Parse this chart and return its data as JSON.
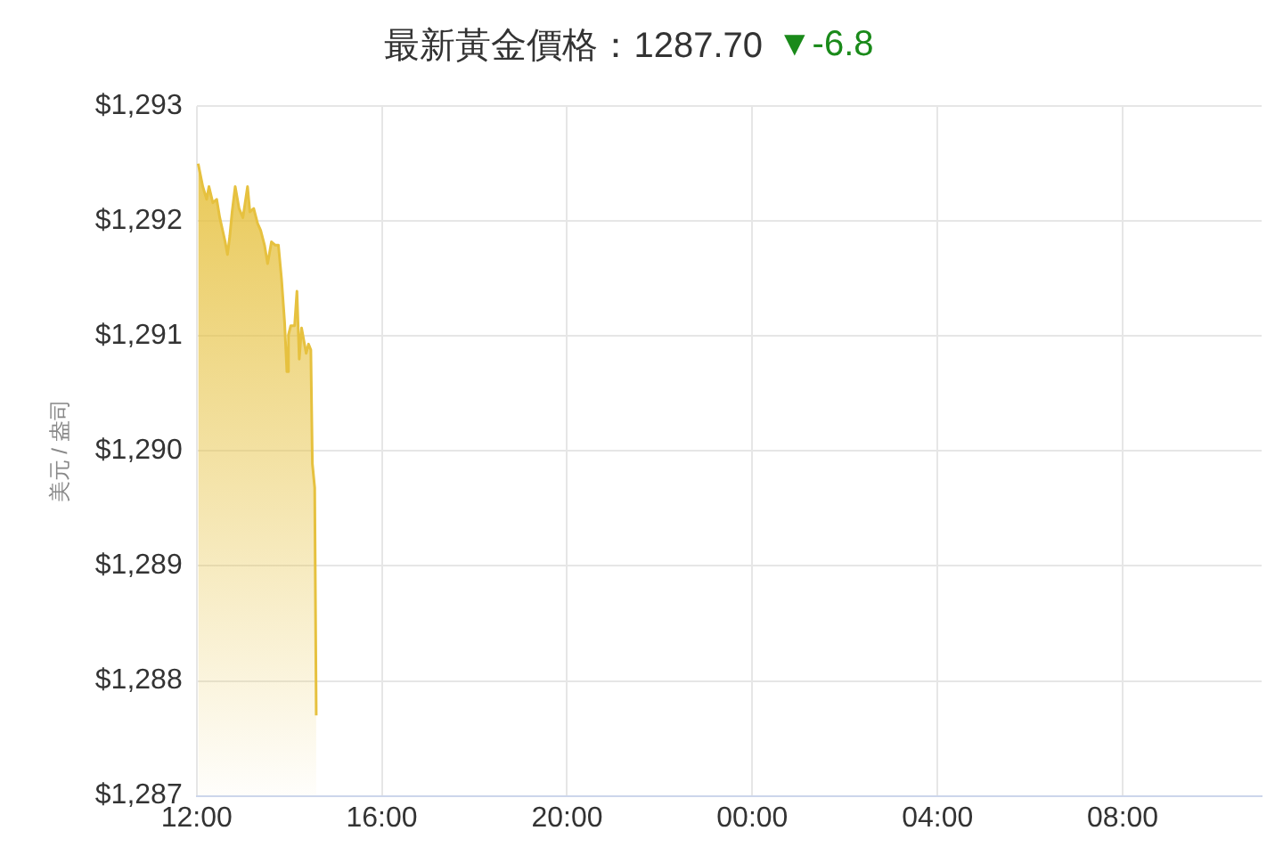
{
  "chart_data": {
    "type": "area",
    "title": "最新黃金價格：1287.70",
    "annotations": [
      "▼-6.8"
    ],
    "ylabel": "美元 / 盎司",
    "x": [
      "--03-01T12:02",
      "--03-01T12:08",
      "--03-01T12:13",
      "--03-01T12:16",
      "--03-01T12:21",
      "--03-01T12:26",
      "--03-01T12:30",
      "--03-01T12:37",
      "--03-01T12:40",
      "--03-01T12:43",
      "--03-01T12:46",
      "--03-01T12:50",
      "--03-01T12:55",
      "--03-01T13:00",
      "--03-01T13:06",
      "--03-01T13:09",
      "--03-01T13:14",
      "--03-01T13:19",
      "--03-01T13:23",
      "--03-01T13:28",
      "--03-01T13:32",
      "--03-01T13:37",
      "--03-01T13:42",
      "--03-01T13:46",
      "--03-01T13:50",
      "--03-01T13:54",
      "--03-01T13:57",
      "--03-01T13:59",
      "--03-01T14:02",
      "--03-01T14:07",
      "--03-01T14:10",
      "--03-01T14:13",
      "--03-01T14:16",
      "--03-01T14:19",
      "--03-01T14:22",
      "--03-01T14:25",
      "--03-01T14:28",
      "--03-01T14:30",
      "--03-01T14:33",
      "--03-01T14:35"
    ],
    "series": [
      {
        "color": "#e6c13f",
        "values": [
          1292.5,
          1292.3,
          1292.19,
          1292.3,
          1292.16,
          1292.19,
          1292.03,
          1291.82,
          1291.71,
          1291.87,
          1292.08,
          1292.3,
          1292.11,
          1292.03,
          1292.3,
          1292.08,
          1292.11,
          1291.98,
          1291.92,
          1291.79,
          1291.63,
          1291.82,
          1291.79,
          1291.79,
          1291.5,
          1291.12,
          1290.69,
          1291.01,
          1291.09,
          1291.09,
          1291.39,
          1290.8,
          1291.07,
          1290.96,
          1290.85,
          1290.93,
          1290.88,
          1289.89,
          1289.68,
          1287.7
        ]
      }
    ],
    "xlim": [
      "--03-01T12:00",
      "--03-02T11:00"
    ],
    "xticks": [
      {
        "value": "--03-01T12:00",
        "label": "12:00"
      },
      {
        "value": "--03-01T16:00",
        "label": "16:00"
      },
      {
        "value": "--03-01T20:00",
        "label": "20:00"
      },
      {
        "value": "--03-02T00:00",
        "label": "00:00"
      },
      {
        "value": "--03-02T04:00",
        "label": "04:00"
      },
      {
        "value": "--03-02T08:00",
        "label": "08:00"
      }
    ],
    "ylim": [
      1287,
      1293
    ],
    "yticks": [
      {
        "value": 1287,
        "label": "$1,287"
      },
      {
        "value": 1288,
        "label": "$1,288"
      },
      {
        "value": 1289,
        "label": "$1,289"
      },
      {
        "value": 1290,
        "label": "$1,290"
      },
      {
        "value": 1291,
        "label": "$1,291"
      },
      {
        "value": 1292,
        "label": "$1,292"
      },
      {
        "value": 1293,
        "label": "$1,293"
      }
    ],
    "grid": true,
    "legend": false,
    "marker": "none",
    "line_style": "solid"
  }
}
